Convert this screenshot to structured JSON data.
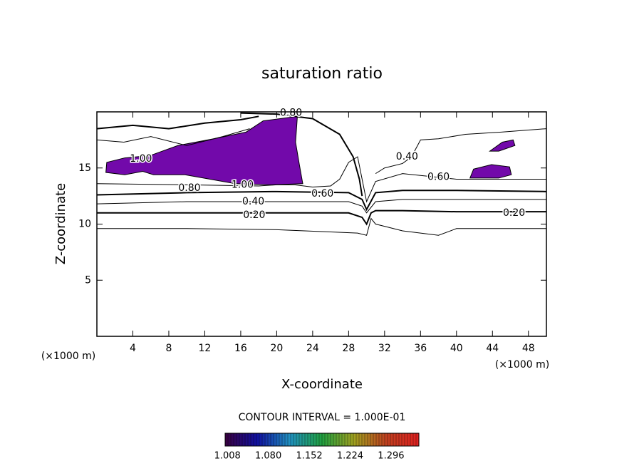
{
  "chart_data": {
    "type": "contour",
    "title": "saturation ratio",
    "x_label": "X-coordinate",
    "y_label": "Z-coordinate",
    "x_unit_label": "(×1000 m)",
    "y_unit_label": "(×1000 m)",
    "xlim": [
      0,
      50
    ],
    "ylim": [
      0,
      20
    ],
    "xticks": [
      4,
      8,
      12,
      16,
      20,
      24,
      28,
      32,
      36,
      40,
      44,
      48
    ],
    "yticks": [
      5,
      10,
      15
    ],
    "fill_color": "#7209aa",
    "filled_regions": [
      {
        "x": [
          1.0,
          1.1,
          3.1,
          5.9,
          9.0,
          13.0,
          16.6,
          18.5,
          22.3,
          22.1,
          22.5,
          22.9,
          19.3,
          15.4,
          9.8,
          6.3,
          5.1,
          3.1
        ],
        "y": [
          14.6,
          15.5,
          15.9,
          16.1,
          17.0,
          17.6,
          18.2,
          19.2,
          19.6,
          17.3,
          15.4,
          13.6,
          13.5,
          13.6,
          14.4,
          14.4,
          14.7,
          14.4
        ]
      },
      {
        "x": [
          41.5,
          41.9,
          43.9,
          45.9,
          46.1,
          44.7
        ],
        "y": [
          14.1,
          14.9,
          15.3,
          15.1,
          14.4,
          14.1
        ]
      },
      {
        "x": [
          43.7,
          45.1,
          46.3,
          46.5,
          44.7
        ],
        "y": [
          16.5,
          17.3,
          17.5,
          17.0,
          16.5
        ]
      }
    ],
    "contour_lines": [
      {
        "x": [
          0,
          10,
          20,
          26,
          29,
          30,
          30.5,
          31,
          32,
          34,
          38,
          40,
          50
        ],
        "y": [
          9.6,
          9.6,
          9.5,
          9.3,
          9.2,
          9.0,
          10.5,
          10.0,
          9.8,
          9.4,
          9.0,
          9.6,
          9.6
        ]
      },
      {
        "x": [
          0,
          10,
          20,
          28,
          29.5,
          30,
          30.5,
          31,
          34,
          40,
          50
        ],
        "y": [
          11.0,
          11.0,
          11.0,
          11.0,
          10.6,
          10.0,
          11.0,
          11.2,
          11.2,
          11.1,
          11.1
        ]
      },
      {
        "x": [
          0,
          10,
          20,
          28,
          29.5,
          30,
          31,
          34,
          40,
          50
        ],
        "y": [
          11.8,
          12.0,
          12.0,
          12.0,
          11.6,
          11.0,
          12.0,
          12.2,
          12.2,
          12.2
        ]
      },
      {
        "x": [
          0,
          10,
          20,
          28,
          29.5,
          30,
          31,
          34,
          40,
          50
        ],
        "y": [
          12.6,
          12.8,
          12.9,
          12.8,
          12.2,
          11.3,
          12.8,
          13.0,
          13.0,
          12.9
        ]
      },
      {
        "x": [
          0,
          10,
          18,
          20,
          22,
          24,
          26,
          27,
          28,
          29,
          29.5,
          30,
          31,
          34,
          40,
          50
        ],
        "y": [
          13.6,
          13.5,
          13.4,
          13.5,
          13.5,
          13.3,
          13.4,
          14.0,
          15.5,
          16.0,
          14.0,
          12.0,
          13.8,
          14.5,
          14.0,
          14.0
        ]
      },
      {
        "x": [
          16,
          20,
          24,
          27,
          28.5,
          29.2,
          29.5
        ],
        "y": [
          19.9,
          19.8,
          19.4,
          18.0,
          16.0,
          14.0,
          12.5
        ]
      },
      {
        "x": [
          31,
          32,
          34,
          35,
          36,
          38,
          41,
          45,
          50
        ],
        "y": [
          14.5,
          15.0,
          15.4,
          16.0,
          17.5,
          17.6,
          18.0,
          18.2,
          18.5
        ]
      },
      {
        "x": [
          0,
          4,
          8,
          12,
          16,
          18
        ],
        "y": [
          18.5,
          18.8,
          18.5,
          19.0,
          19.3,
          19.6
        ]
      },
      {
        "x": [
          0,
          3,
          6,
          10,
          14,
          17
        ],
        "y": [
          17.5,
          17.3,
          17.8,
          17.0,
          17.8,
          18.5
        ]
      }
    ],
    "contour_labels": [
      {
        "text": "0.80",
        "x": 21.6,
        "y": 19.9
      },
      {
        "text": "1.00",
        "x": 4.9,
        "y": 15.8
      },
      {
        "text": "0.80",
        "x": 10.3,
        "y": 13.2
      },
      {
        "text": "1.00",
        "x": 16.2,
        "y": 13.5
      },
      {
        "text": "0.60",
        "x": 25.1,
        "y": 12.7
      },
      {
        "text": "0.40",
        "x": 17.4,
        "y": 12.0
      },
      {
        "text": "0.20",
        "x": 17.5,
        "y": 10.8
      },
      {
        "text": "0.20",
        "x": 46.4,
        "y": 11.0
      },
      {
        "text": "0.40",
        "x": 34.5,
        "y": 16.0
      },
      {
        "text": "0.60",
        "x": 38.0,
        "y": 14.2
      }
    ],
    "contour_interval_text": "CONTOUR INTERVAL = 1.000E-01",
    "colorbar": {
      "colors": [
        "#3a0040",
        "#1010a0",
        "#2090c0",
        "#20a040",
        "#a0a020",
        "#c04020",
        "#e02020"
      ],
      "lim": [
        1.004,
        1.345
      ],
      "ticks": [
        1.008,
        {
          "value": 1.08,
          "label": "1.080"
        },
        1.152,
        1.224,
        1.296
      ]
    }
  }
}
